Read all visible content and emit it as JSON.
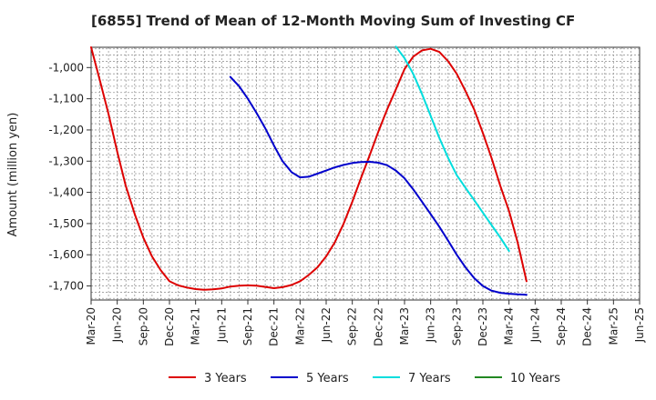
{
  "chart_data": {
    "type": "line",
    "title": "[6855]  Trend of Mean of 12-Month Moving Sum of Investing CF",
    "xlabel": "",
    "ylabel": "Amount (million yen)",
    "ylim": [
      -1745,
      -935
    ],
    "yticks": [
      -1000,
      -1100,
      -1200,
      -1300,
      -1400,
      -1500,
      -1600,
      -1700
    ],
    "ytick_labels": [
      "-1,000",
      "-1,100",
      "-1,200",
      "-1,300",
      "-1,400",
      "-1,500",
      "-1,600",
      "-1,700"
    ],
    "x_categories": [
      "Mar-20",
      "Jun-20",
      "Sep-20",
      "Dec-20",
      "Mar-21",
      "Jun-21",
      "Sep-21",
      "Dec-21",
      "Mar-22",
      "Jun-22",
      "Sep-22",
      "Dec-22",
      "Mar-23",
      "Jun-23",
      "Sep-23",
      "Dec-23",
      "Mar-24",
      "Jun-24",
      "Sep-24",
      "Dec-24",
      "Mar-25",
      "Jun-25"
    ],
    "grid": true,
    "legend_position": "bottom",
    "series": [
      {
        "name": "3 Years",
        "color": "#dd0000",
        "points": [
          [
            0,
            -935
          ],
          [
            0.33,
            -1040
          ],
          [
            0.67,
            -1150
          ],
          [
            1,
            -1270
          ],
          [
            1.33,
            -1380
          ],
          [
            1.67,
            -1470
          ],
          [
            2,
            -1545
          ],
          [
            2.33,
            -1605
          ],
          [
            2.67,
            -1650
          ],
          [
            3,
            -1685
          ],
          [
            3.33,
            -1698
          ],
          [
            3.67,
            -1705
          ],
          [
            4,
            -1710
          ],
          [
            4.33,
            -1712
          ],
          [
            4.67,
            -1711
          ],
          [
            5,
            -1708
          ],
          [
            5.33,
            -1702
          ],
          [
            5.67,
            -1699
          ],
          [
            6,
            -1698
          ],
          [
            6.33,
            -1699
          ],
          [
            6.67,
            -1703
          ],
          [
            7,
            -1707
          ],
          [
            7.33,
            -1704
          ],
          [
            7.67,
            -1697
          ],
          [
            8,
            -1685
          ],
          [
            8.33,
            -1665
          ],
          [
            8.67,
            -1640
          ],
          [
            9,
            -1605
          ],
          [
            9.33,
            -1560
          ],
          [
            9.67,
            -1500
          ],
          [
            10,
            -1430
          ],
          [
            10.33,
            -1355
          ],
          [
            10.67,
            -1280
          ],
          [
            11,
            -1205
          ],
          [
            11.33,
            -1135
          ],
          [
            11.67,
            -1070
          ],
          [
            12,
            -1005
          ],
          [
            12.33,
            -965
          ],
          [
            12.67,
            -945
          ],
          [
            13,
            -940
          ],
          [
            13.33,
            -950
          ],
          [
            13.67,
            -980
          ],
          [
            14,
            -1020
          ],
          [
            14.33,
            -1075
          ],
          [
            14.67,
            -1135
          ],
          [
            15,
            -1210
          ],
          [
            15.33,
            -1290
          ],
          [
            15.67,
            -1380
          ],
          [
            16,
            -1460
          ],
          [
            16.33,
            -1560
          ],
          [
            16.67,
            -1685
          ]
        ]
      },
      {
        "name": "5 Years",
        "color": "#0000cc",
        "points": [
          [
            5.33,
            -1030
          ],
          [
            5.67,
            -1060
          ],
          [
            6,
            -1100
          ],
          [
            6.33,
            -1145
          ],
          [
            6.67,
            -1195
          ],
          [
            7,
            -1250
          ],
          [
            7.33,
            -1300
          ],
          [
            7.67,
            -1335
          ],
          [
            8,
            -1352
          ],
          [
            8.33,
            -1350
          ],
          [
            8.67,
            -1340
          ],
          [
            9,
            -1330
          ],
          [
            9.33,
            -1320
          ],
          [
            9.67,
            -1312
          ],
          [
            10,
            -1306
          ],
          [
            10.33,
            -1303
          ],
          [
            10.67,
            -1302
          ],
          [
            11,
            -1305
          ],
          [
            11.33,
            -1313
          ],
          [
            11.67,
            -1330
          ],
          [
            12,
            -1355
          ],
          [
            12.33,
            -1390
          ],
          [
            12.67,
            -1430
          ],
          [
            13,
            -1470
          ],
          [
            13.33,
            -1510
          ],
          [
            13.67,
            -1555
          ],
          [
            14,
            -1600
          ],
          [
            14.33,
            -1640
          ],
          [
            14.67,
            -1675
          ],
          [
            15,
            -1700
          ],
          [
            15.33,
            -1715
          ],
          [
            15.67,
            -1722
          ],
          [
            16,
            -1725
          ],
          [
            16.33,
            -1727
          ],
          [
            16.67,
            -1728
          ]
        ]
      },
      {
        "name": "7 Years",
        "color": "#00dddd",
        "points": [
          [
            11.67,
            -933
          ],
          [
            12,
            -970
          ],
          [
            12.33,
            -1020
          ],
          [
            12.67,
            -1085
          ],
          [
            13,
            -1155
          ],
          [
            13.33,
            -1225
          ],
          [
            13.67,
            -1290
          ],
          [
            14,
            -1345
          ],
          [
            14.33,
            -1385
          ],
          [
            14.67,
            -1425
          ],
          [
            15,
            -1465
          ],
          [
            15.33,
            -1505
          ],
          [
            15.67,
            -1545
          ],
          [
            16,
            -1588
          ]
        ]
      },
      {
        "name": "10 Years",
        "color": "#228822",
        "points": []
      }
    ]
  }
}
